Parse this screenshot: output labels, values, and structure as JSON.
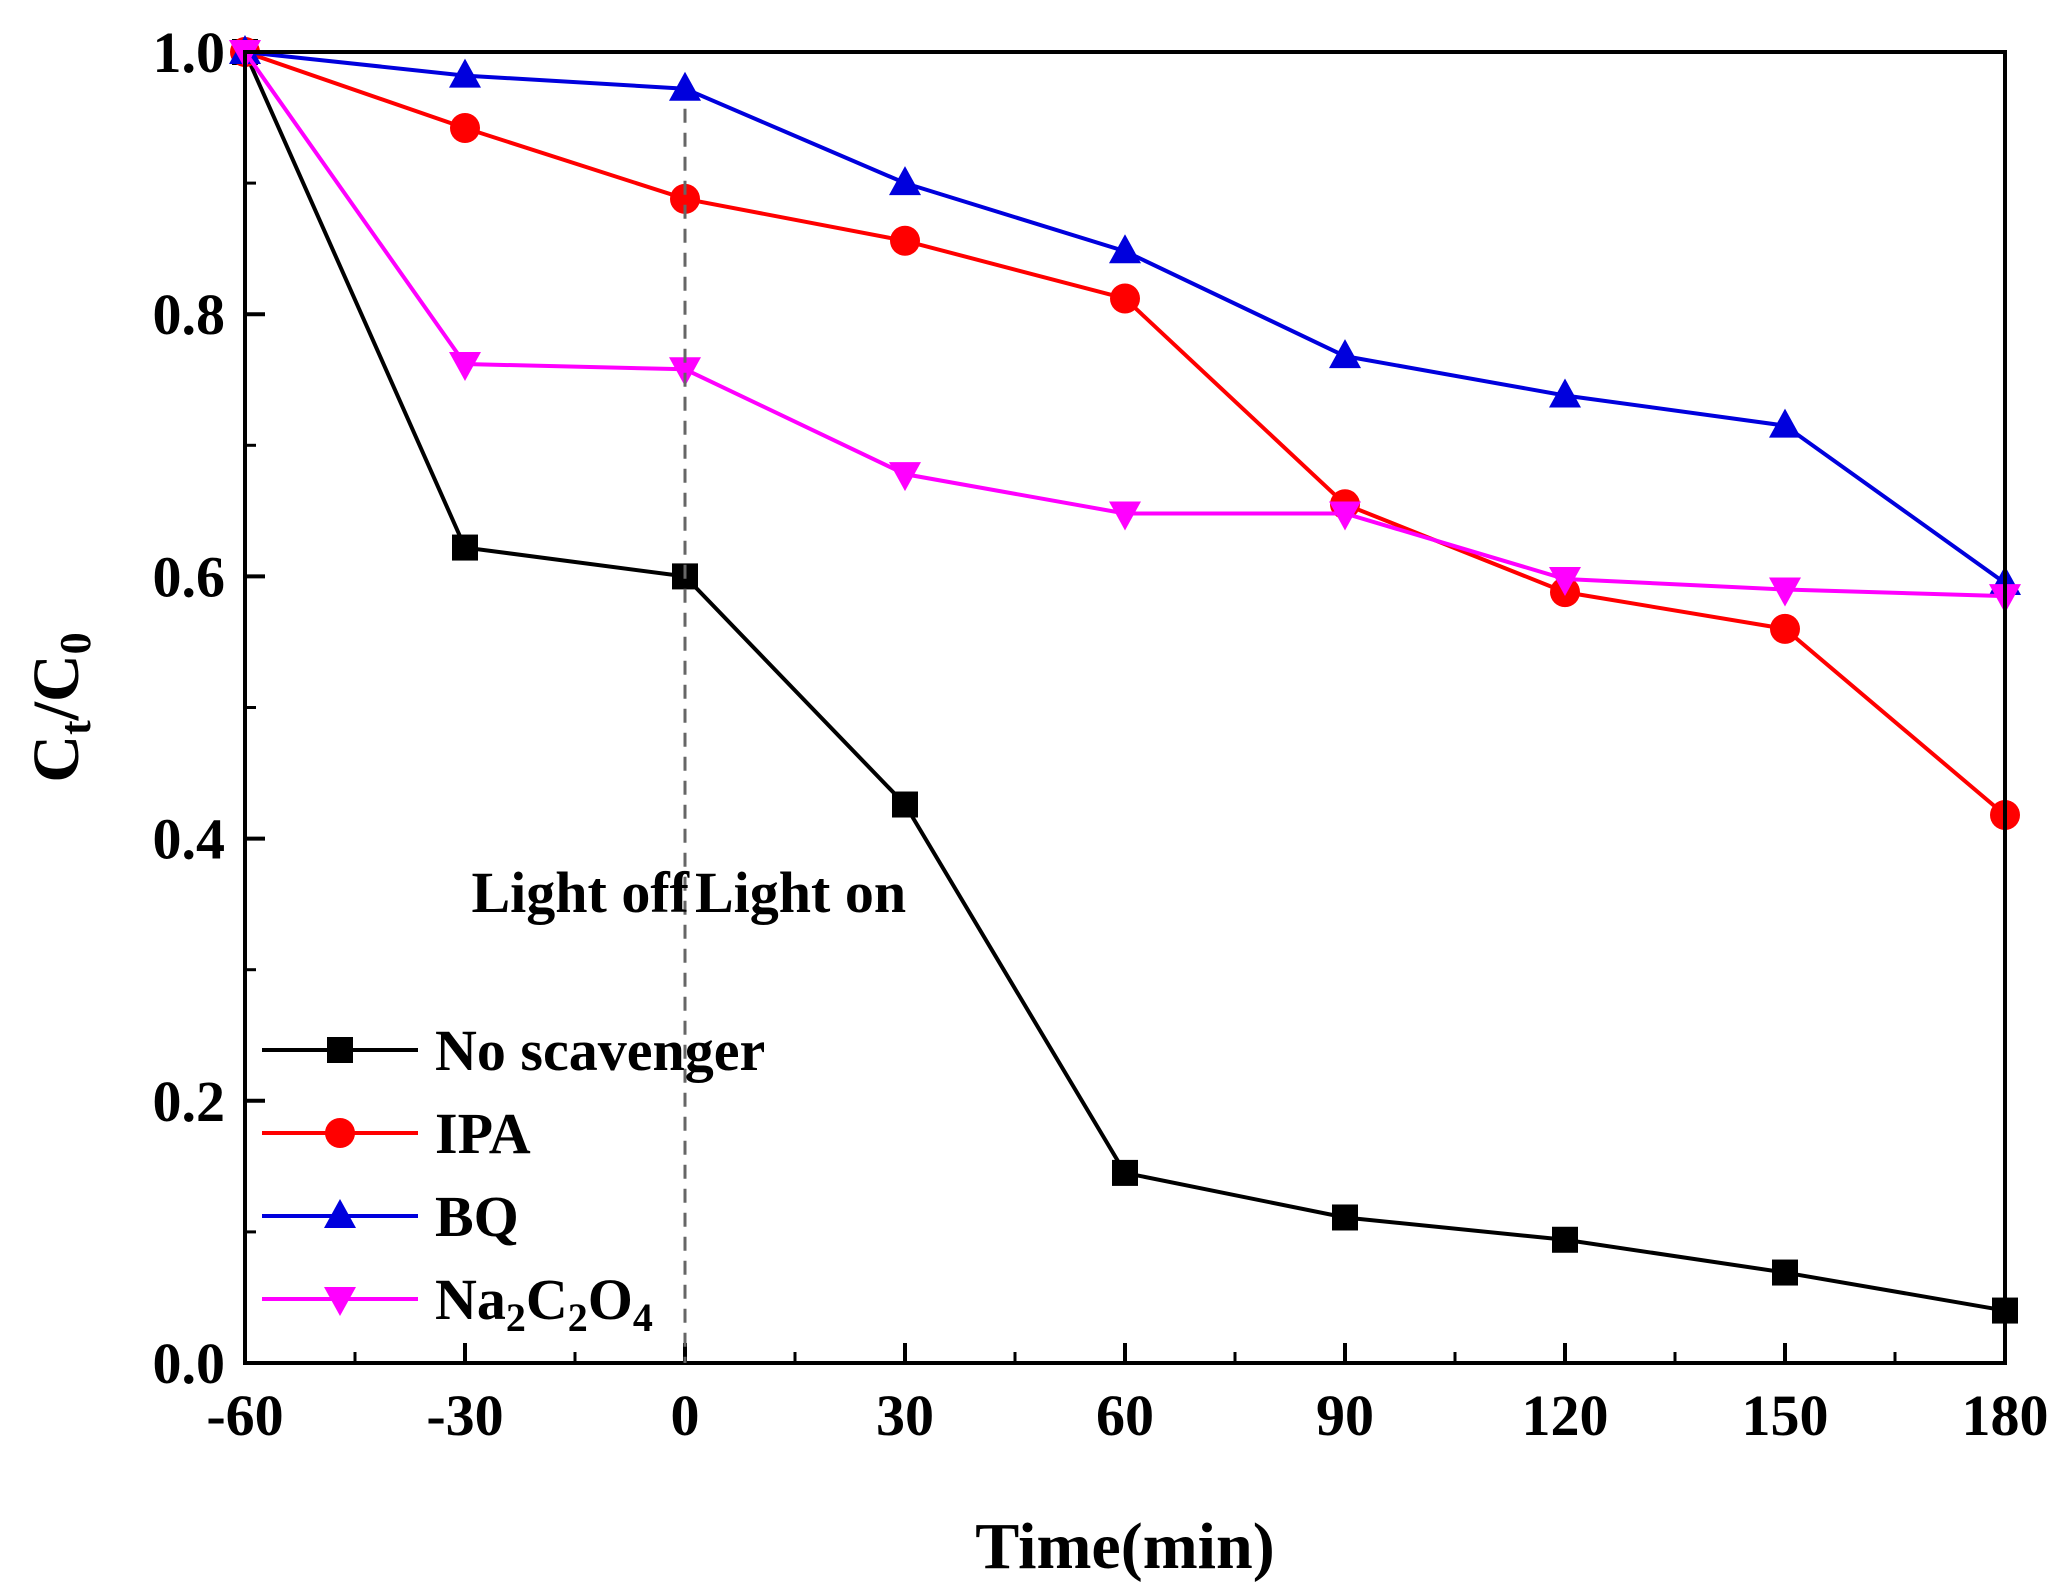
{
  "chart_data": {
    "type": "line",
    "title": "",
    "xlabel": "Time(min)",
    "ylabel": {
      "main1": "C",
      "sub1": "t",
      "sep": "/",
      "main2": "C",
      "sub2": "0"
    },
    "xlim": [
      -60,
      180
    ],
    "ylim": [
      0.0,
      1.0
    ],
    "x": [
      -60,
      -30,
      0,
      30,
      60,
      90,
      120,
      150,
      180
    ],
    "x_ticks": [
      "-60",
      "-30",
      "0",
      "30",
      "60",
      "90",
      "120",
      "150",
      "180"
    ],
    "y_ticks": [
      "0.0",
      "0.2",
      "0.4",
      "0.6",
      "0.8",
      "1.0"
    ],
    "grid": false,
    "legend_position": "bottom-left",
    "series": [
      {
        "name": "No scavenger",
        "label": "No scavenger",
        "color": "#000000",
        "marker": "square",
        "values": [
          1.0,
          0.622,
          0.6,
          0.426,
          0.145,
          0.111,
          0.094,
          0.069,
          0.04
        ]
      },
      {
        "name": "IPA",
        "label": "IPA",
        "color": "#ff0000",
        "marker": "circle",
        "values": [
          1.0,
          0.942,
          0.888,
          0.856,
          0.812,
          0.655,
          0.588,
          0.56,
          0.418
        ]
      },
      {
        "name": "BQ",
        "label": "BQ",
        "color": "#0000dd",
        "marker": "triangle-up",
        "values": [
          1.0,
          0.982,
          0.972,
          0.9,
          0.848,
          0.768,
          0.738,
          0.715,
          0.595
        ]
      },
      {
        "name": "Na2C2O4",
        "label": {
          "a": "Na",
          "s1": "2",
          "b": "C",
          "s2": "2",
          "c": "O",
          "s3": "4"
        },
        "color": "#ff00ff",
        "marker": "triangle-down",
        "values": [
          1.0,
          0.762,
          0.758,
          0.678,
          0.648,
          0.648,
          0.598,
          0.59,
          0.585
        ]
      }
    ],
    "annotations": {
      "divider_x": 0,
      "light_off": "Light off",
      "light_on": "Light on"
    }
  }
}
